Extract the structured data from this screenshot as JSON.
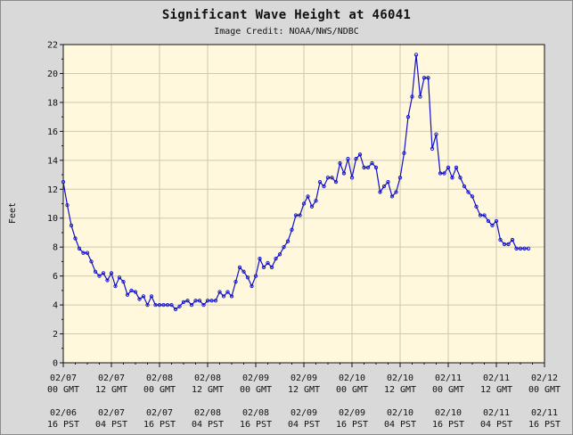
{
  "chart_data": {
    "type": "line",
    "title": "Significant Wave Height at 46041",
    "subtitle": "Image Credit: NOAA/NWS/NDBC",
    "ylabel": "Feet",
    "ylim": [
      0,
      22
    ],
    "yticks": [
      0,
      2,
      4,
      6,
      8,
      10,
      12,
      14,
      16,
      18,
      20,
      22
    ],
    "xlim_hours": [
      0,
      120
    ],
    "grid": true,
    "xticks_gmt": [
      [
        "02/07",
        "00 GMT"
      ],
      [
        "02/07",
        "12 GMT"
      ],
      [
        "02/08",
        "00 GMT"
      ],
      [
        "02/08",
        "12 GMT"
      ],
      [
        "02/09",
        "00 GMT"
      ],
      [
        "02/09",
        "12 GMT"
      ],
      [
        "02/10",
        "00 GMT"
      ],
      [
        "02/10",
        "12 GMT"
      ],
      [
        "02/11",
        "00 GMT"
      ],
      [
        "02/11",
        "12 GMT"
      ],
      [
        "02/12",
        "00 GMT"
      ]
    ],
    "xticks_pst": [
      [
        "02/06",
        "16 PST"
      ],
      [
        "02/07",
        "04 PST"
      ],
      [
        "02/07",
        "16 PST"
      ],
      [
        "02/08",
        "04 PST"
      ],
      [
        "02/08",
        "16 PST"
      ],
      [
        "02/09",
        "04 PST"
      ],
      [
        "02/09",
        "16 PST"
      ],
      [
        "02/10",
        "04 PST"
      ],
      [
        "02/10",
        "16 PST"
      ],
      [
        "02/11",
        "04 PST"
      ],
      [
        "02/11",
        "16 PST"
      ]
    ],
    "colors": {
      "background": "#d9d9d9",
      "plot_area": "#fff8dc",
      "grid": "#d0c8b0",
      "line": "#1010cc"
    },
    "series": [
      {
        "x_hours": [
          0,
          1,
          2,
          3,
          4,
          5,
          6,
          7,
          8,
          9,
          10,
          11,
          12,
          13,
          14,
          15,
          16,
          17,
          18,
          19,
          20,
          21,
          22,
          23,
          24,
          25,
          26,
          27,
          28,
          29,
          30,
          31,
          32,
          33,
          34,
          35,
          36,
          37,
          38,
          39,
          40,
          41,
          42,
          43,
          44,
          45,
          46,
          47,
          48,
          49,
          50,
          51,
          52,
          53,
          54,
          55,
          56,
          57,
          58,
          59,
          60,
          61,
          62,
          63,
          64,
          65,
          66,
          67,
          68,
          69,
          70,
          71,
          72,
          73,
          74,
          75,
          76,
          77,
          78,
          79,
          80,
          81,
          82,
          83,
          84,
          85,
          86,
          87,
          88,
          89,
          90,
          91,
          92,
          93,
          94,
          95,
          96,
          97,
          98,
          99,
          100,
          101,
          102,
          103,
          104,
          105,
          106,
          107,
          108,
          109,
          110,
          111,
          112,
          113,
          114,
          115,
          116
        ],
        "values": [
          12.5,
          10.9,
          9.5,
          8.6,
          7.9,
          7.6,
          7.6,
          7.0,
          6.3,
          6.0,
          6.2,
          5.7,
          6.2,
          5.3,
          5.9,
          5.6,
          4.7,
          5.0,
          4.9,
          4.4,
          4.6,
          4.0,
          4.6,
          4.0,
          4.0,
          4.0,
          4.0,
          4.0,
          3.7,
          3.9,
          4.2,
          4.3,
          4.0,
          4.3,
          4.3,
          4.0,
          4.3,
          4.3,
          4.3,
          4.9,
          4.6,
          4.9,
          4.6,
          5.6,
          6.6,
          6.3,
          5.9,
          5.3,
          6.0,
          7.2,
          6.6,
          6.9,
          6.6,
          7.2,
          7.5,
          8.0,
          8.4,
          9.2,
          10.2,
          10.2,
          11.0,
          11.5,
          10.8,
          11.2,
          12.5,
          12.2,
          12.8,
          12.8,
          12.5,
          13.8,
          13.1,
          14.1,
          12.8,
          14.1,
          14.4,
          13.5,
          13.5,
          13.8,
          13.5,
          11.8,
          12.2,
          12.5,
          11.5,
          11.8,
          12.8,
          14.5,
          17.0,
          18.4,
          21.3,
          18.4,
          19.7,
          19.7,
          14.8,
          15.8,
          13.1,
          13.1,
          13.5,
          12.8,
          13.5,
          12.8,
          12.2,
          11.8,
          11.5,
          10.8,
          10.2,
          10.2,
          9.8,
          9.5,
          9.8,
          8.5,
          8.2,
          8.2,
          8.5,
          7.9,
          7.9,
          7.9,
          7.9
        ]
      }
    ]
  }
}
